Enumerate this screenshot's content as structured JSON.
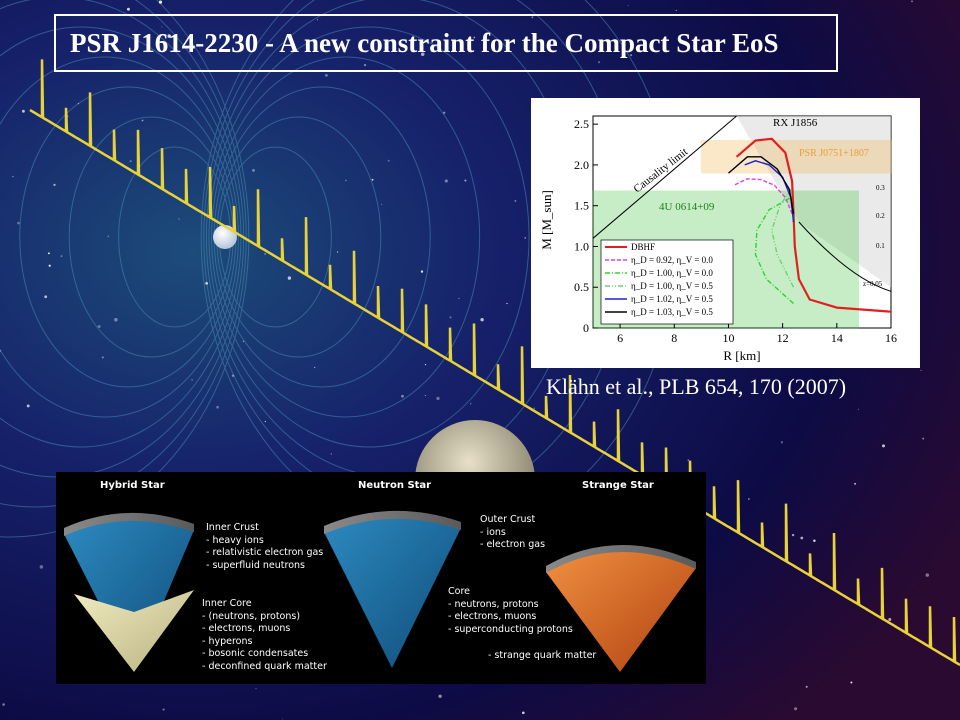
{
  "slide": {
    "title": "PSR J1614-2230 - A new constraint for the Compact Star EoS",
    "citation": "Klähn et al., PLB 654, 170 (2007)"
  },
  "colors": {
    "background_deep": "#0b0a3a",
    "pulse_trace": "#e8d23a",
    "dbhf": "#e02020",
    "band_psr": "#f0b040",
    "band_4u": "#39c039"
  },
  "chart_data": {
    "type": "line",
    "xlabel": "R [km]",
    "ylabel": "M [M_sun]",
    "xlim": [
      5,
      16
    ],
    "ylim": [
      0,
      2.6
    ],
    "x_ticks": [
      6,
      8,
      10,
      12,
      14,
      16
    ],
    "y_ticks": [
      0,
      0.5,
      1.0,
      1.5,
      2.0,
      2.5
    ],
    "y_tick_labels": [
      "0",
      "0.5",
      "1.0",
      "1.5",
      "2.0",
      "2.5"
    ],
    "annotations": [
      "RX J1856",
      "PSR J0751+1807",
      "Causality limit",
      "4U 0614+09",
      "0.3",
      "0.2",
      "0.1",
      "z=0.05"
    ],
    "legend_position": "bottom-left",
    "series": [
      {
        "name": "DBHF",
        "color": "#e02020",
        "style": "solid",
        "points": [
          [
            16.0,
            0.2
          ],
          [
            14.0,
            0.25
          ],
          [
            13.0,
            0.35
          ],
          [
            12.6,
            0.6
          ],
          [
            12.45,
            1.0
          ],
          [
            12.4,
            1.4
          ],
          [
            12.35,
            1.8
          ],
          [
            12.1,
            2.15
          ],
          [
            11.6,
            2.32
          ],
          [
            11.0,
            2.3
          ],
          [
            10.3,
            2.1
          ]
        ]
      },
      {
        "name": "η_D = 0.92, η_V = 0.0",
        "color": "#e040e0",
        "style": "dashed",
        "points": [
          [
            12.35,
            1.4
          ],
          [
            12.1,
            1.6
          ],
          [
            11.7,
            1.75
          ],
          [
            11.2,
            1.82
          ],
          [
            10.7,
            1.83
          ],
          [
            10.2,
            1.75
          ]
        ]
      },
      {
        "name": "η_D = 1.00, η_V = 0.0",
        "color": "#30d030",
        "style": "dashdot",
        "points": [
          [
            12.4,
            0.3
          ],
          [
            11.4,
            0.6
          ],
          [
            11.0,
            0.9
          ],
          [
            11.05,
            1.2
          ],
          [
            11.5,
            1.45
          ],
          [
            12.3,
            1.6
          ]
        ]
      },
      {
        "name": "η_D = 1.00, η_V = 0.5",
        "color": "#70d070",
        "style": "dashdotdot",
        "points": [
          [
            12.4,
            0.5
          ],
          [
            11.8,
            0.9
          ],
          [
            11.6,
            1.2
          ],
          [
            11.9,
            1.5
          ],
          [
            12.3,
            1.7
          ]
        ]
      },
      {
        "name": "η_D = 1.02, η_V = 0.5",
        "color": "#2020d0",
        "style": "solid",
        "points": [
          [
            12.4,
            1.3
          ],
          [
            12.3,
            1.6
          ],
          [
            12.0,
            1.85
          ],
          [
            11.5,
            2.0
          ],
          [
            11.0,
            2.05
          ],
          [
            10.6,
            2.0
          ]
        ]
      },
      {
        "name": "η_D = 1.03, η_V = 0.5",
        "color": "#000000",
        "style": "solid",
        "points": [
          [
            12.4,
            1.4
          ],
          [
            12.25,
            1.7
          ],
          [
            11.8,
            1.95
          ],
          [
            11.2,
            2.1
          ],
          [
            10.7,
            2.1
          ],
          [
            10.0,
            1.9
          ]
        ]
      }
    ],
    "bands": [
      {
        "label": "PSR J0751+1807",
        "color": "#f0b040",
        "ymin": 1.9,
        "ymax": 2.3,
        "xmin": 9.0,
        "xmax": 16.0
      },
      {
        "label": "4U 0614+09",
        "color": "#39c039",
        "ymin": 0,
        "ymax": 1.68,
        "xmin": 5.0,
        "xmax": 14.8
      }
    ]
  },
  "star_panel": {
    "titles": {
      "hybrid": "Hybrid Star",
      "neutron": "Neutron Star",
      "strange": "Strange Star"
    },
    "inner_crust": [
      "Inner Crust",
      "- heavy ions",
      "- relativistic electron gas",
      "- superfluid neutrons"
    ],
    "inner_core": [
      "Inner Core",
      "- (neutrons, protons)",
      "- electrons, muons",
      "- hyperons",
      "- bosonic condensates",
      "- deconfined quark matter"
    ],
    "outer_crust": [
      "Outer Crust",
      "- ions",
      "- electron gas"
    ],
    "core": [
      "Core",
      "- neutrons, protons",
      "- electrons, muons",
      "- superconducting protons"
    ],
    "strange_core": "- strange quark matter"
  }
}
